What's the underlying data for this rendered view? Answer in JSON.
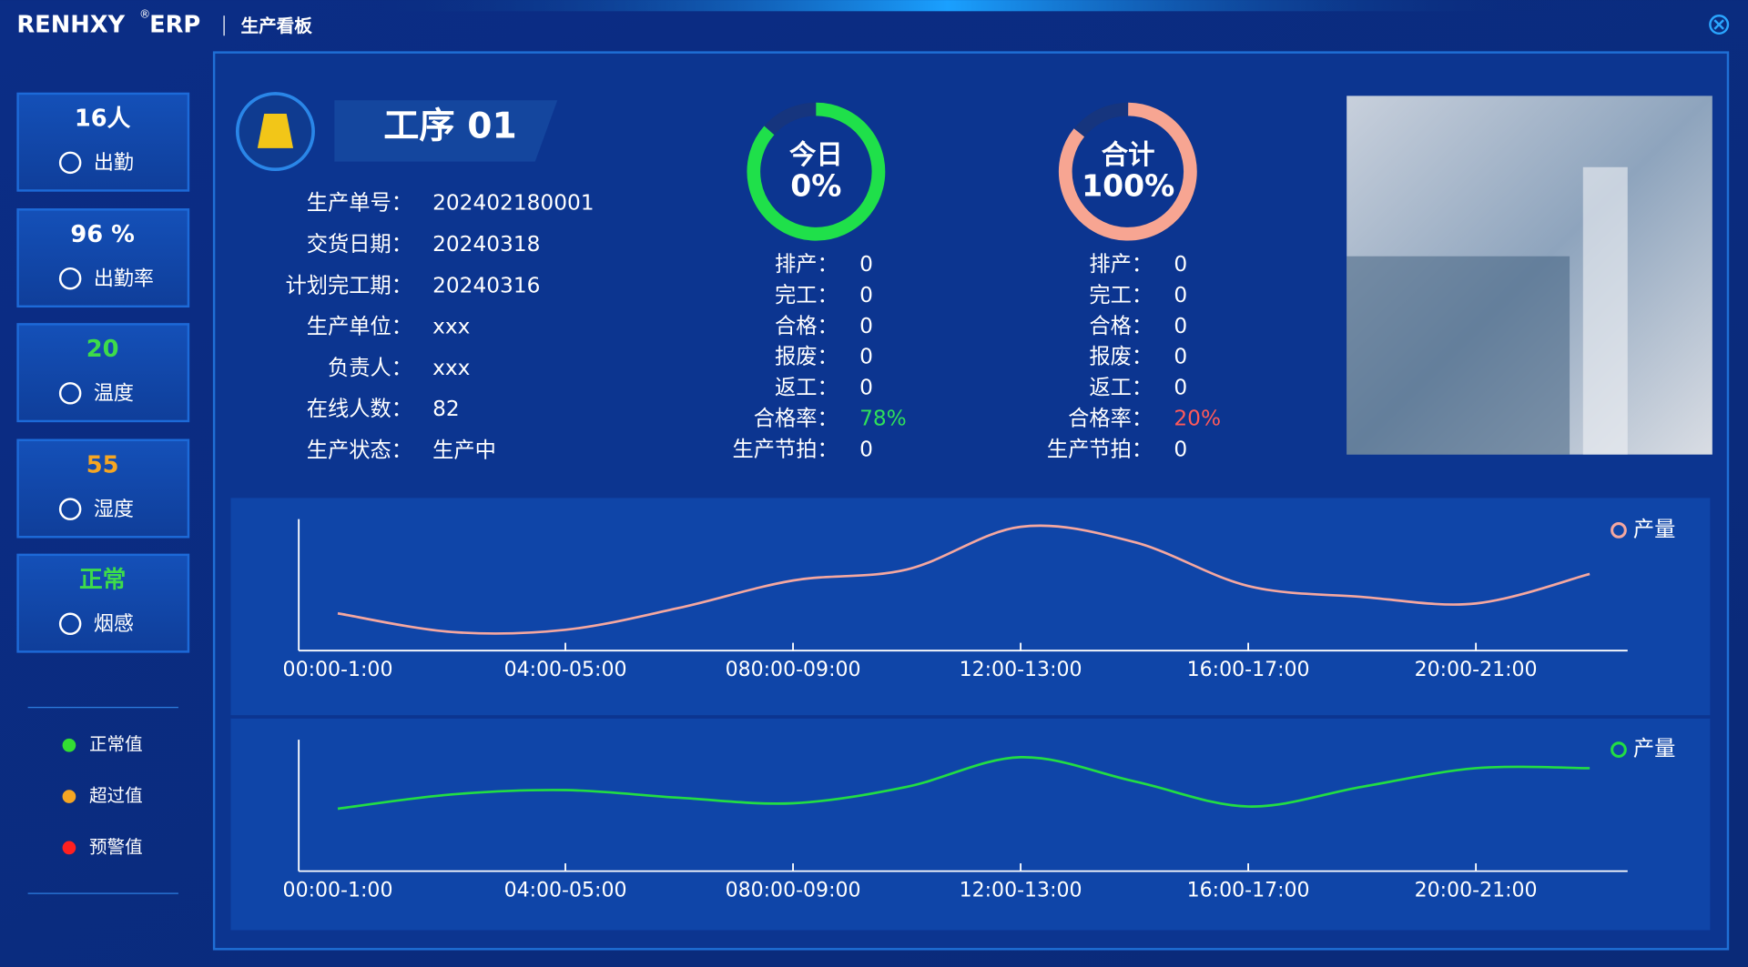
{
  "header": {
    "brand": "RENHXY",
    "reg": "®",
    "brand2": "ERP",
    "title": "生产看板"
  },
  "sidebar": {
    "stats": [
      {
        "value": "16人",
        "label": "出勤",
        "color": "#ffffff"
      },
      {
        "value": "96 %",
        "label": "出勤率",
        "color": "#ffffff"
      },
      {
        "value": "20",
        "label": "温度",
        "color": "#3ddc4a"
      },
      {
        "value": "55",
        "label": "湿度",
        "color": "#f5a623"
      },
      {
        "value": "正常",
        "label": "烟感",
        "color": "#3ddc4a"
      }
    ],
    "legend": [
      {
        "label": "正常值",
        "color": "#33dd33"
      },
      {
        "label": "超过值",
        "color": "#f5a623"
      },
      {
        "label": "预警值",
        "color": "#ff2020"
      }
    ]
  },
  "process": {
    "title": "工序 01",
    "fields": [
      {
        "label": "生产单号：",
        "value": "202402180001"
      },
      {
        "label": "交货日期：",
        "value": "20240318"
      },
      {
        "label": "计划完工期：",
        "value": "20240316"
      },
      {
        "label": "生产单位：",
        "value": "xxx"
      },
      {
        "label": "负责人：",
        "value": "xxx"
      },
      {
        "label": "在线人数：",
        "value": "82"
      },
      {
        "label": "生产状态：",
        "value": "生产中"
      }
    ]
  },
  "rings": [
    {
      "label": "今日",
      "value": "0%",
      "color": "#1fe04a",
      "rows": [
        {
          "label": "排产：",
          "value": "0"
        },
        {
          "label": "完工：",
          "value": "0"
        },
        {
          "label": "合格：",
          "value": "0"
        },
        {
          "label": "报废：",
          "value": "0"
        },
        {
          "label": "返工：",
          "value": "0"
        },
        {
          "label": "合格率：",
          "value": "78%",
          "color": "#2fe05a"
        },
        {
          "label": "生产节拍：",
          "value": "0"
        }
      ]
    },
    {
      "label": "合计",
      "value": "100%",
      "color": "#f7a592",
      "rows": [
        {
          "label": "排产：",
          "value": "0"
        },
        {
          "label": "完工：",
          "value": "0"
        },
        {
          "label": "合格：",
          "value": "0"
        },
        {
          "label": "报废：",
          "value": "0"
        },
        {
          "label": "返工：",
          "value": "0"
        },
        {
          "label": "合格率：",
          "value": "20%",
          "color": "#ff5a5a"
        },
        {
          "label": "生产节拍：",
          "value": "0"
        }
      ]
    }
  ],
  "chart_data": [
    {
      "type": "line",
      "categories": [
        "00:00-1:00",
        null,
        "04:00-05:00",
        null,
        "080:00-09:00",
        null,
        "12:00-13:00",
        null,
        "16:00-17:00",
        null,
        "20:00-21:00",
        null
      ],
      "ylim": [
        0,
        120
      ],
      "series": [
        {
          "name": "产量",
          "color": "#f4a7a0",
          "values": [
            34,
            17,
            19,
            39,
            64,
            74,
            113,
            99,
            59,
            49,
            43,
            70
          ]
        }
      ]
    },
    {
      "type": "line",
      "categories": [
        "00:00-1:00",
        null,
        "04:00-05:00",
        null,
        "080:00-09:00",
        null,
        "12:00-13:00",
        null,
        "16:00-17:00",
        null,
        "20:00-21:00",
        null
      ],
      "ylim": [
        0,
        120
      ],
      "series": [
        {
          "name": "产量",
          "color": "#22dd44",
          "values": [
            57,
            70,
            74,
            67,
            62,
            77,
            104,
            82,
            59,
            77,
            94,
            94
          ]
        }
      ]
    }
  ]
}
